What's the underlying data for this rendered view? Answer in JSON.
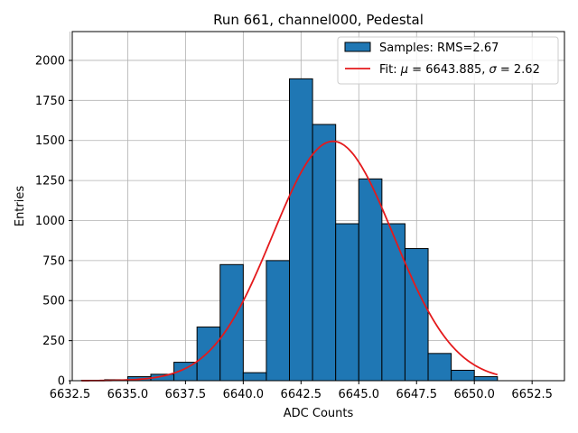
{
  "chart_data": {
    "type": "bar",
    "title": "Run 661, channel000, Pedestal",
    "xlabel": "ADC Counts",
    "ylabel": "Entries",
    "xlim": [
      6632.6,
      6653.9
    ],
    "ylim": [
      0,
      2180
    ],
    "grid": true,
    "xticks": [
      6632.5,
      6635.0,
      6637.5,
      6640.0,
      6642.5,
      6645.0,
      6647.5,
      6650.0,
      6652.5
    ],
    "xtick_labels": [
      "6632.5",
      "6635.0",
      "6637.5",
      "6640.0",
      "6642.5",
      "6645.0",
      "6647.5",
      "6650.0",
      "6652.5"
    ],
    "yticks": [
      0,
      250,
      500,
      750,
      1000,
      1250,
      1500,
      1750,
      2000
    ],
    "ytick_labels": [
      "0",
      "250",
      "500",
      "750",
      "1000",
      "1250",
      "1500",
      "1750",
      "2000"
    ],
    "legend_position": "top-right",
    "histogram": {
      "name": "Samples: RMS=2.67",
      "color": "#1f77b4",
      "edgecolor": "#000000",
      "bin_width": 1,
      "bin_starts": [
        6633,
        6634,
        6635,
        6636,
        6637,
        6638,
        6639,
        6640,
        6641,
        6642,
        6643,
        6644,
        6645,
        6646,
        6647,
        6648,
        6649,
        6650,
        6651
      ],
      "values": [
        2,
        6,
        25,
        40,
        115,
        335,
        725,
        50,
        750,
        1885,
        1600,
        980,
        1260,
        980,
        825,
        170,
        65,
        25,
        0
      ]
    },
    "fit": {
      "name_prefix": "Fit: ",
      "name_mu": "μ",
      "name_eq1": " = 6643.885, ",
      "name_sigma": "σ",
      "name_eq2": " = 2.62",
      "color": "#e41a1c",
      "function": "gaussian",
      "mu": 6643.885,
      "sigma": 2.62,
      "amplitude": 1495,
      "x_range": [
        6633.0,
        6651.0
      ]
    }
  }
}
